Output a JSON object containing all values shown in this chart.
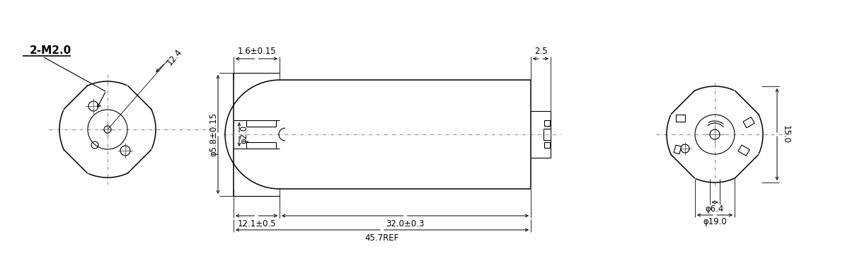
{
  "bg_color": "#ffffff",
  "lc": "#000000",
  "font_size": 8.5,
  "labels": {
    "m2": "2-M2.0",
    "r_12_4": "12.4",
    "phi_5_8": "φ5.8±0.15",
    "phi_2_0": "φ2.0",
    "dim_1_6": "1.6±0.15",
    "dim_2_5": "2.5",
    "dim_12_1": "12.1±0.5",
    "dim_32_0": "32.0±0.3",
    "dim_45_7": "45.7REF",
    "phi_6_4": "φ6.4",
    "phi_19_0": "φ19.0",
    "dim_15_0": "15.0"
  }
}
